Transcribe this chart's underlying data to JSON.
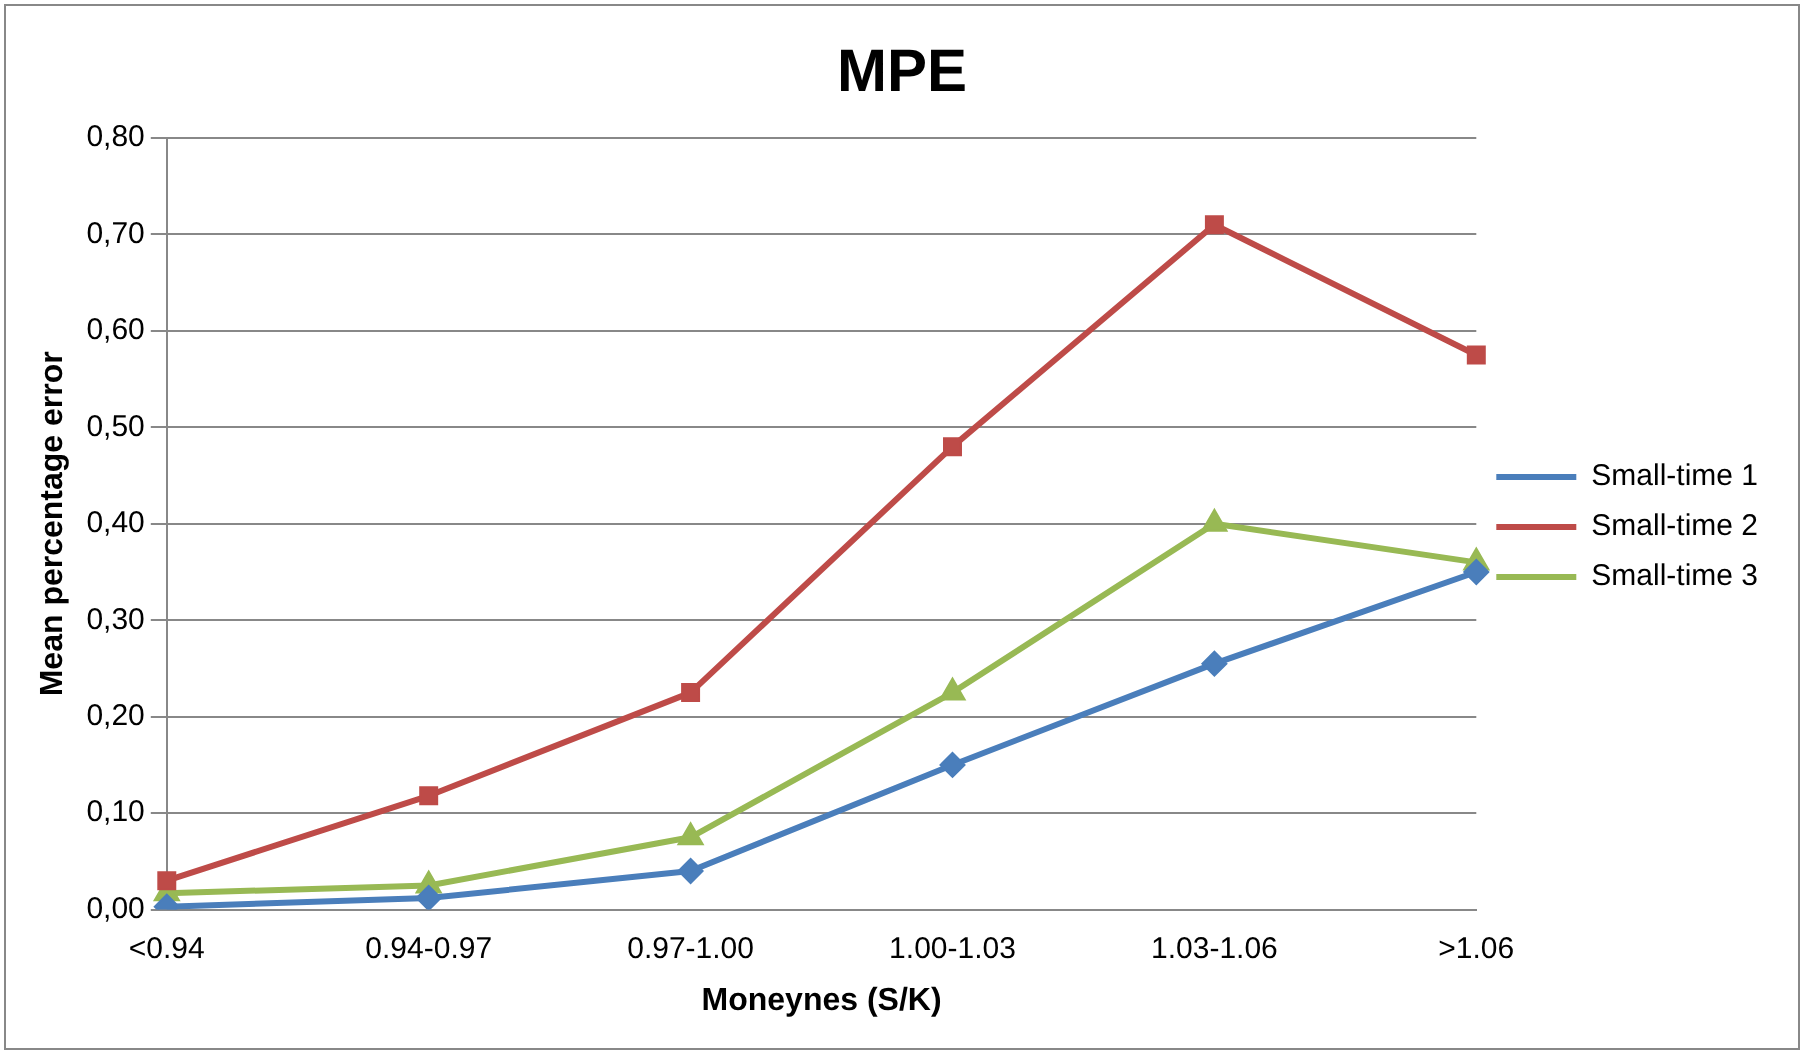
{
  "chart_data": {
    "type": "line",
    "title": "MPE",
    "xlabel": "Moneynes (S/K)",
    "ylabel": "Mean percentage error",
    "categories": [
      "<0.94",
      "0.94-0.97",
      "0.97-1.00",
      "1.00-1.03",
      "1.03-1.06",
      ">1.06"
    ],
    "series": [
      {
        "name": "Small-time 1",
        "color": "#4a7ebb",
        "marker": "diamond",
        "values": [
          0.003,
          0.012,
          0.04,
          0.15,
          0.255,
          0.35
        ]
      },
      {
        "name": "Small-time 2",
        "color": "#be4b48",
        "marker": "square",
        "values": [
          0.03,
          0.118,
          0.225,
          0.48,
          0.71,
          0.575
        ]
      },
      {
        "name": "Small-time 3",
        "color": "#98b954",
        "marker": "triangle",
        "values": [
          0.017,
          0.025,
          0.075,
          0.225,
          0.4,
          0.36
        ]
      }
    ],
    "ylim": [
      0,
      0.8
    ],
    "yticks": [
      {
        "value": 0,
        "label": "0,00"
      },
      {
        "value": 0.1,
        "label": "0,10"
      },
      {
        "value": 0.2,
        "label": "0,20"
      },
      {
        "value": 0.3,
        "label": "0,30"
      },
      {
        "value": 0.4,
        "label": "0,40"
      },
      {
        "value": 0.5,
        "label": "0,50"
      },
      {
        "value": 0.6,
        "label": "0,60"
      },
      {
        "value": 0.7,
        "label": "0,70"
      },
      {
        "value": 0.8,
        "label": "0,80"
      }
    ],
    "grid": "y",
    "legend": "right",
    "line_style": "solid"
  }
}
